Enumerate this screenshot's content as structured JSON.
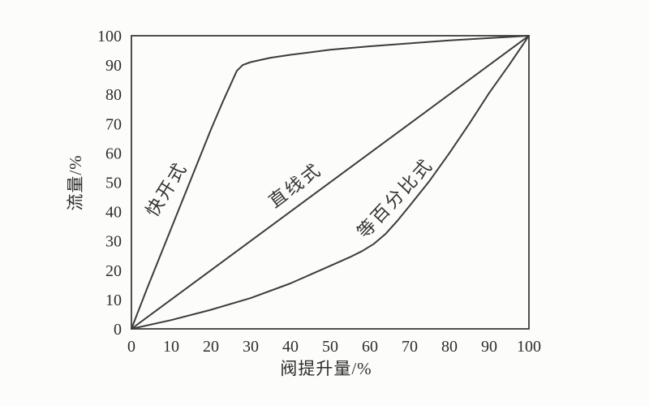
{
  "page": {
    "background_color": "#fcfcfa",
    "line_color": "#3c3c3c",
    "text_color": "#2d2d2d"
  },
  "chart_data": {
    "type": "line",
    "title": "",
    "xlabel": "阀提升量/%",
    "ylabel": "流量/%",
    "xlim": [
      0,
      100
    ],
    "ylim": [
      0,
      100
    ],
    "x_ticks": [
      0,
      10,
      20,
      30,
      40,
      50,
      60,
      70,
      80,
      90,
      100
    ],
    "y_ticks": [
      0,
      10,
      20,
      30,
      40,
      50,
      60,
      70,
      80,
      90,
      100
    ],
    "grid": false,
    "legend_position": "labels-along-curves",
    "series": [
      {
        "name": "quick-opening",
        "label": "快开式",
        "points": [
          [
            0,
            0
          ],
          [
            4,
            14
          ],
          [
            8,
            27.5
          ],
          [
            12,
            41
          ],
          [
            16,
            54.5
          ],
          [
            20,
            68
          ],
          [
            23,
            77.5
          ],
          [
            25,
            83.5
          ],
          [
            26.5,
            88
          ],
          [
            28,
            90
          ],
          [
            30,
            91
          ],
          [
            35,
            92.5
          ],
          [
            40,
            93.5
          ],
          [
            50,
            95.2
          ],
          [
            60,
            96.4
          ],
          [
            70,
            97.4
          ],
          [
            80,
            98.4
          ],
          [
            90,
            99.2
          ],
          [
            100,
            100
          ]
        ]
      },
      {
        "name": "linear",
        "label": "直线式",
        "points": [
          [
            0,
            0
          ],
          [
            100,
            100
          ]
        ]
      },
      {
        "name": "equal-percentage",
        "label": "等百分比式",
        "points": [
          [
            0,
            0
          ],
          [
            10,
            3
          ],
          [
            20,
            6.5
          ],
          [
            30,
            10.5
          ],
          [
            40,
            15.5
          ],
          [
            50,
            21.5
          ],
          [
            55,
            24.5
          ],
          [
            58,
            26.5
          ],
          [
            61,
            29
          ],
          [
            64,
            32.5
          ],
          [
            67,
            37
          ],
          [
            70,
            42
          ],
          [
            75,
            50.5
          ],
          [
            80,
            60
          ],
          [
            85,
            70
          ],
          [
            90,
            80.5
          ],
          [
            95,
            90
          ],
          [
            100,
            100
          ]
        ]
      }
    ]
  }
}
